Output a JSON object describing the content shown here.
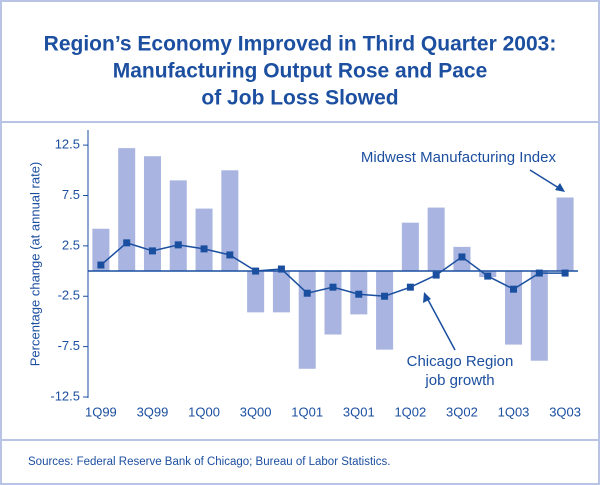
{
  "chart_data": {
    "type": "bar-line",
    "title": [
      "Region’s Economy Improved in Third Quarter 2003:",
      "Manufacturing Output Rose and Pace",
      "of Job Loss Slowed"
    ],
    "y_label": "Percentage change (at annual rate)",
    "categories": [
      "1Q99",
      null,
      "3Q99",
      null,
      "1Q00",
      null,
      "3Q00",
      null,
      "1Q01",
      null,
      "3Q01",
      null,
      "1Q02",
      null,
      "3Q02",
      null,
      "1Q03",
      null,
      "3Q03"
    ],
    "series": [
      {
        "name": "Midwest Manufacturing Index",
        "type": "bar",
        "color": "#a9b5e0",
        "values": [
          4.2,
          12.2,
          11.4,
          9.0,
          6.2,
          10.0,
          -4.1,
          -4.1,
          -9.7,
          -6.3,
          -4.3,
          -7.8,
          4.8,
          6.3,
          2.4,
          -0.6,
          -7.3,
          -8.9,
          7.3
        ]
      },
      {
        "name": [
          "Chicago Region",
          "job growth"
        ],
        "type": "line",
        "color": "#1a4fa0",
        "values": [
          0.6,
          2.8,
          2.0,
          2.6,
          2.2,
          1.6,
          0.0,
          0.2,
          -2.2,
          -1.6,
          -2.3,
          -2.5,
          -1.6,
          -0.4,
          1.4,
          -0.5,
          -1.8,
          -0.2,
          -0.2
        ]
      }
    ],
    "ylim": [
      -12.6,
      14.0
    ],
    "yticks": [
      -12.5,
      -7.5,
      -2.5,
      2.5,
      7.5,
      12.5
    ],
    "source": "Sources: Federal Reserve Bank of Chicago; Bureau of Labor Statistics."
  }
}
